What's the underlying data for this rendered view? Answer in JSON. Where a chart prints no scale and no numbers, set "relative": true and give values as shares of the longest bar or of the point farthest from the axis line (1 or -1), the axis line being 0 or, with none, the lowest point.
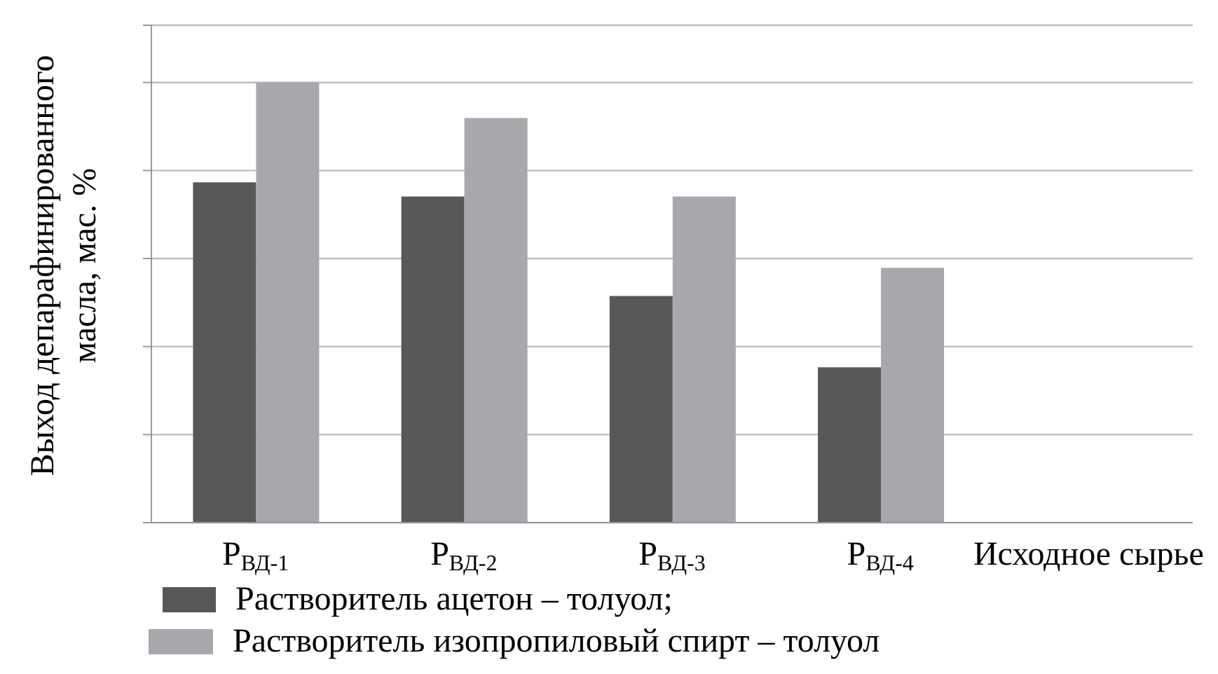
{
  "chart_data": {
    "type": "bar",
    "relative": true,
    "ylabel": "Выход депарафинированного масла, мас. %",
    "categories": [
      "Р$_{ВД-1}$",
      "Р$_{ВД-2}$",
      "Р$_{ВД-3}$",
      "Р$_{ВД-4}$",
      "Исходное сырье"
    ],
    "series": [
      {
        "name": "Растворитель ацетон – толуол;",
        "color": "#58585a",
        "values": [
          0.773,
          0.741,
          0.515,
          0.353,
          null
        ]
      },
      {
        "name": "Растворитель изопропиловый спирт – толуол",
        "color": "#a7a8ab",
        "values": [
          1,
          0.919,
          0.741,
          0.579,
          null
        ]
      }
    ],
    "grid": "y",
    "legend": "bottom"
  }
}
